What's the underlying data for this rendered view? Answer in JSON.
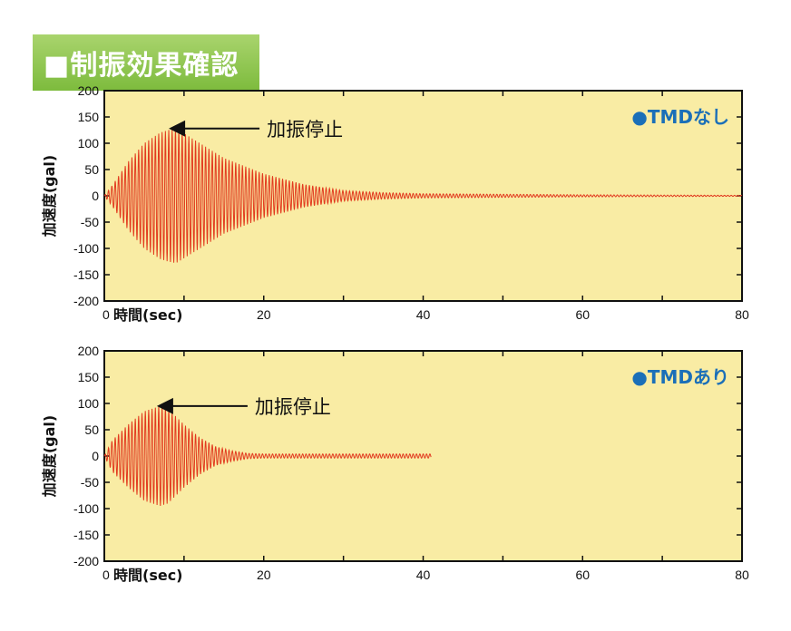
{
  "page": {
    "title": "■制振効果確認"
  },
  "chart_data": [
    {
      "type": "line",
      "legend": "●TMDなし",
      "annotation": "加振停止",
      "annotation_x": 9,
      "annotation_y": 128,
      "ylabel": "加速度(gal)",
      "xlabel": "時間(sec)",
      "xlim": [
        0,
        80
      ],
      "ylim": [
        -200,
        200
      ],
      "x_ticks": [
        "0",
        "20",
        "40",
        "60",
        "80"
      ],
      "y_ticks": [
        "200",
        "150",
        "100",
        "50",
        "0",
        "-50",
        "-100",
        "-150",
        "-200"
      ],
      "series": [
        {
          "color": "#e23a1f",
          "envelope": {
            "x": [
              0,
              1,
              3,
              5,
              7,
              8,
              9,
              12,
              15,
              20,
              25,
              30,
              35,
              40,
              50,
              60,
              70,
              80
            ],
            "y": [
              0,
              20,
              65,
              100,
              120,
              125,
              128,
              100,
              72,
              42,
              22,
              10,
              6,
              4,
              3,
              2,
              1.5,
              1
            ]
          },
          "period_sec": 0.42,
          "x_end": 80
        }
      ]
    },
    {
      "type": "line",
      "legend": "●TMDあり",
      "annotation": "加振停止",
      "annotation_x": 7.5,
      "annotation_y": 95,
      "ylabel": "加速度(gal)",
      "xlabel": "時間(sec)",
      "xlim": [
        0,
        80
      ],
      "ylim": [
        -200,
        200
      ],
      "x_ticks": [
        "0",
        "20",
        "40",
        "60",
        "80"
      ],
      "y_ticks": [
        "200",
        "150",
        "100",
        "50",
        "0",
        "-50",
        "-100",
        "-150",
        "-200"
      ],
      "series": [
        {
          "color": "#e23a1f",
          "envelope": {
            "x": [
              0,
              1,
              3,
              5,
              7,
              8,
              10,
              12,
              14,
              16,
              18,
              20,
              25,
              30,
              41
            ],
            "y": [
              0,
              30,
              60,
              85,
              95,
              90,
              60,
              35,
              18,
              10,
              5,
              4,
              4,
              4,
              4
            ]
          },
          "period_sec": 0.42,
          "x_end": 41
        }
      ]
    }
  ]
}
